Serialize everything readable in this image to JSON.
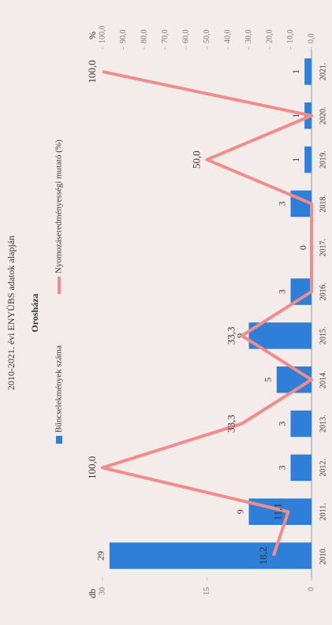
{
  "chart_data": {
    "type": "bar_line",
    "title": "2010-2021. évi ENYÜBS adatok alapján",
    "subtitle": "Orosháza",
    "categories": [
      "2010.",
      "2011.",
      "2012.",
      "2013.",
      "2014.",
      "2015.",
      "2016.",
      "2017.",
      "2018.",
      "2019.",
      "2020.",
      "2021."
    ],
    "series": [
      {
        "name": "Bűncselekmények száma",
        "color": "#2f7fd8",
        "values": [
          29,
          9,
          3,
          3,
          5,
          9,
          3,
          0,
          3,
          1,
          1,
          1
        ]
      },
      {
        "name": "Nyomozáseredményességi mutató (%)",
        "color": "#f28b8b",
        "axis": "y2",
        "values": [
          18.2,
          11.1,
          100.0,
          33.3,
          0.0,
          33.3,
          0.0,
          0.0,
          0.0,
          50.0,
          0.0,
          100.0
        ],
        "value_labels": [
          "18,2",
          "11,1",
          "100,0",
          "33,3",
          null,
          "33,3",
          null,
          null,
          null,
          "50,0",
          null,
          "100,0"
        ]
      }
    ],
    "y_label": "db",
    "y2_label": "%",
    "ylim": [
      0,
      30
    ],
    "yticks": [
      0,
      15,
      30
    ],
    "y2lim": [
      0,
      100
    ],
    "y2ticks": [
      {
        "value": 0,
        "label": "0,0"
      },
      {
        "value": 10,
        "label": "10,0"
      },
      {
        "value": 20,
        "label": "20,0"
      },
      {
        "value": 30,
        "label": "30,0"
      },
      {
        "value": 40,
        "label": "40,0"
      },
      {
        "value": 50,
        "label": "50,0"
      },
      {
        "value": 60,
        "label": "60,0"
      },
      {
        "value": 70,
        "label": "70,0"
      },
      {
        "value": 80,
        "label": "80,0"
      },
      {
        "value": 90,
        "label": "90,0"
      },
      {
        "value": 100,
        "label": "100,0"
      }
    ]
  }
}
